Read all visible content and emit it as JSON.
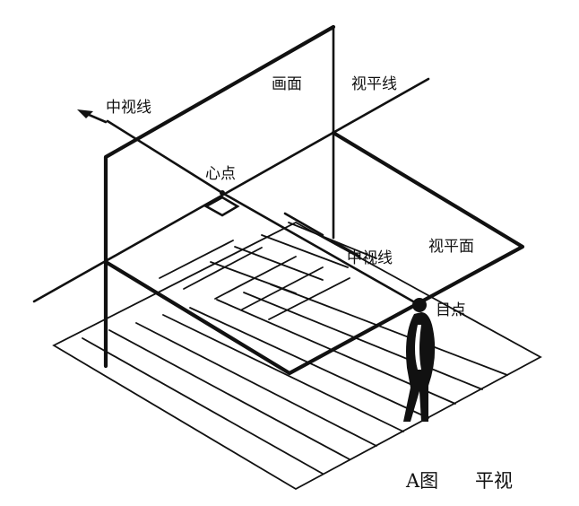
{
  "labels": {
    "picture_plane": "画面",
    "horizon_line": "视平线",
    "central_visual_ray_left": "中视线",
    "center_of_vision": "心点",
    "central_visual_ray_right": "中视线",
    "horizon_plane": "视平面",
    "station_point": "目点"
  },
  "caption": {
    "figure": "A图",
    "title": "平视"
  }
}
